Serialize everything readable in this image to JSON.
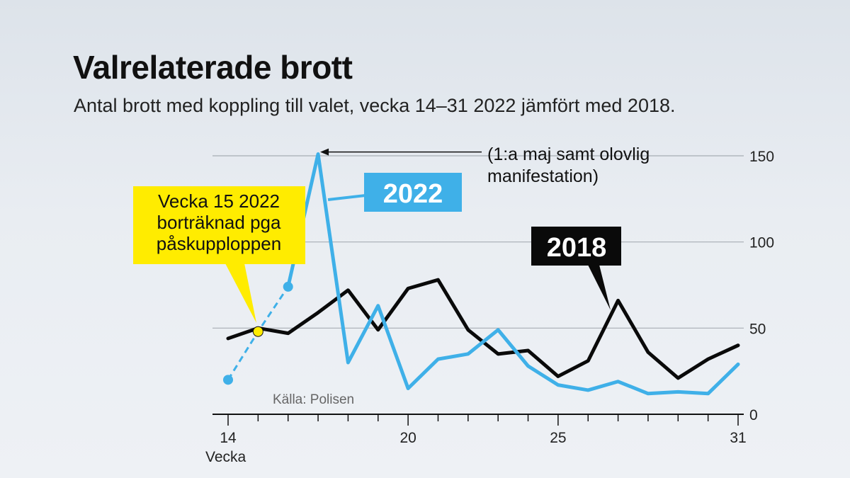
{
  "header": {
    "title": "Valrelaterade brott",
    "subtitle": "Antal brott med koppling till valet, vecka 14–31 2022 jämfört med 2018."
  },
  "colors": {
    "series_2022": "#3fb0e8",
    "series_2018": "#0a0a0a",
    "highlight": "#ffec00",
    "grid": "#a7adb4"
  },
  "chart_data": {
    "type": "line",
    "title": "Valrelaterade brott",
    "subtitle": "Antal brott med koppling till valet, vecka 14–31 2022 jämfört med 2018.",
    "xlabel": "Vecka",
    "ylabel": "",
    "xlim": [
      14,
      31
    ],
    "ylim": [
      0,
      150
    ],
    "x_ticks": [
      14,
      20,
      25,
      31
    ],
    "y_ticks": [
      0,
      50,
      100,
      150
    ],
    "grid": true,
    "source": "Källa: Polisen",
    "x": [
      14,
      15,
      16,
      17,
      18,
      19,
      20,
      21,
      22,
      23,
      24,
      25,
      26,
      27,
      28,
      29,
      30,
      31
    ],
    "series": [
      {
        "name": "2022",
        "color": "#3fb0e8",
        "values": [
          20,
          48,
          74,
          151,
          30,
          63,
          15,
          32,
          35,
          49,
          28,
          17,
          14,
          19,
          12,
          13,
          12,
          29
        ],
        "note": "Vecka 15 2022 borträknad pga påskupploppen",
        "dashed_weeks": [
          14,
          15,
          16
        ]
      },
      {
        "name": "2018",
        "color": "#0a0a0a",
        "values": [
          44,
          50,
          47,
          59,
          72,
          49,
          73,
          78,
          49,
          35,
          37,
          22,
          31,
          66,
          36,
          21,
          32,
          40
        ]
      }
    ],
    "annotations": [
      {
        "text_lines": [
          "(1:a maj samt olovlig",
          "manifestation)"
        ],
        "week": 17,
        "series": "2022"
      },
      {
        "text_lines": [
          "Vecka 15 2022",
          "borträknad pga",
          "påskupploppen"
        ],
        "week": 15,
        "series": "2022"
      }
    ]
  }
}
